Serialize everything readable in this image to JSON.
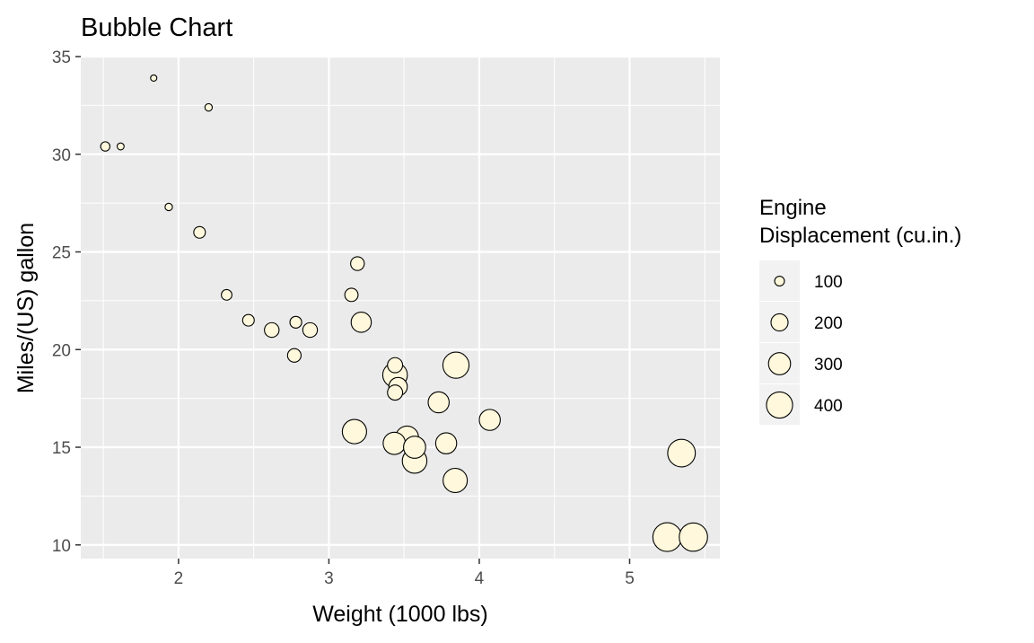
{
  "chart_data": {
    "type": "scatter",
    "title": "Bubble Chart",
    "xlabel": "Weight (1000 lbs)",
    "ylabel": "Miles/(US) gallon",
    "xlim": [
      1.35,
      5.6
    ],
    "ylim": [
      9.3,
      35.0
    ],
    "x_ticks": [
      2,
      3,
      4,
      5
    ],
    "y_ticks": [
      10,
      15,
      20,
      25,
      30,
      35
    ],
    "x_tick_labels": [
      "2",
      "3",
      "4",
      "5"
    ],
    "y_tick_labels": [
      "10",
      "15",
      "20",
      "25",
      "30",
      "35"
    ],
    "grid": true,
    "legend_position": "right",
    "size_legend": {
      "title": "Engine\nDisplacement (cu.in.)",
      "title_lines": [
        "Engine",
        "Displacement (cu.in.)"
      ],
      "values": [
        100,
        200,
        300,
        400
      ],
      "labels": [
        "100",
        "200",
        "300",
        "400"
      ]
    },
    "colors": {
      "panel_bg": "#ebebeb",
      "grid": "#ffffff",
      "point_fill": "#fff8dc",
      "point_stroke": "#000000"
    },
    "points": [
      {
        "x": 2.62,
        "y": 21.0,
        "size": 160
      },
      {
        "x": 2.875,
        "y": 21.0,
        "size": 160
      },
      {
        "x": 2.32,
        "y": 22.8,
        "size": 108
      },
      {
        "x": 3.215,
        "y": 21.4,
        "size": 258
      },
      {
        "x": 3.44,
        "y": 18.7,
        "size": 360
      },
      {
        "x": 3.46,
        "y": 18.1,
        "size": 225
      },
      {
        "x": 3.57,
        "y": 14.3,
        "size": 360
      },
      {
        "x": 3.19,
        "y": 24.4,
        "size": 146.7
      },
      {
        "x": 3.15,
        "y": 22.8,
        "size": 140.8
      },
      {
        "x": 3.44,
        "y": 19.2,
        "size": 167.6
      },
      {
        "x": 3.44,
        "y": 17.8,
        "size": 167.6
      },
      {
        "x": 4.07,
        "y": 16.4,
        "size": 275.8
      },
      {
        "x": 3.73,
        "y": 17.3,
        "size": 275.8
      },
      {
        "x": 3.78,
        "y": 15.2,
        "size": 275.8
      },
      {
        "x": 5.25,
        "y": 10.4,
        "size": 472
      },
      {
        "x": 5.424,
        "y": 10.4,
        "size": 460
      },
      {
        "x": 5.345,
        "y": 14.7,
        "size": 440
      },
      {
        "x": 2.2,
        "y": 32.4,
        "size": 78.7
      },
      {
        "x": 1.615,
        "y": 30.4,
        "size": 75.7
      },
      {
        "x": 1.835,
        "y": 33.9,
        "size": 71.1
      },
      {
        "x": 2.465,
        "y": 21.5,
        "size": 120.1
      },
      {
        "x": 3.52,
        "y": 15.5,
        "size": 318
      },
      {
        "x": 3.435,
        "y": 15.2,
        "size": 304
      },
      {
        "x": 3.84,
        "y": 13.3,
        "size": 350
      },
      {
        "x": 3.845,
        "y": 19.2,
        "size": 400
      },
      {
        "x": 1.935,
        "y": 27.3,
        "size": 79
      },
      {
        "x": 2.14,
        "y": 26.0,
        "size": 120.3
      },
      {
        "x": 1.513,
        "y": 30.4,
        "size": 95.1
      },
      {
        "x": 3.17,
        "y": 15.8,
        "size": 351
      },
      {
        "x": 2.77,
        "y": 19.7,
        "size": 145
      },
      {
        "x": 3.57,
        "y": 15.0,
        "size": 301
      },
      {
        "x": 2.78,
        "y": 21.4,
        "size": 121
      }
    ]
  }
}
